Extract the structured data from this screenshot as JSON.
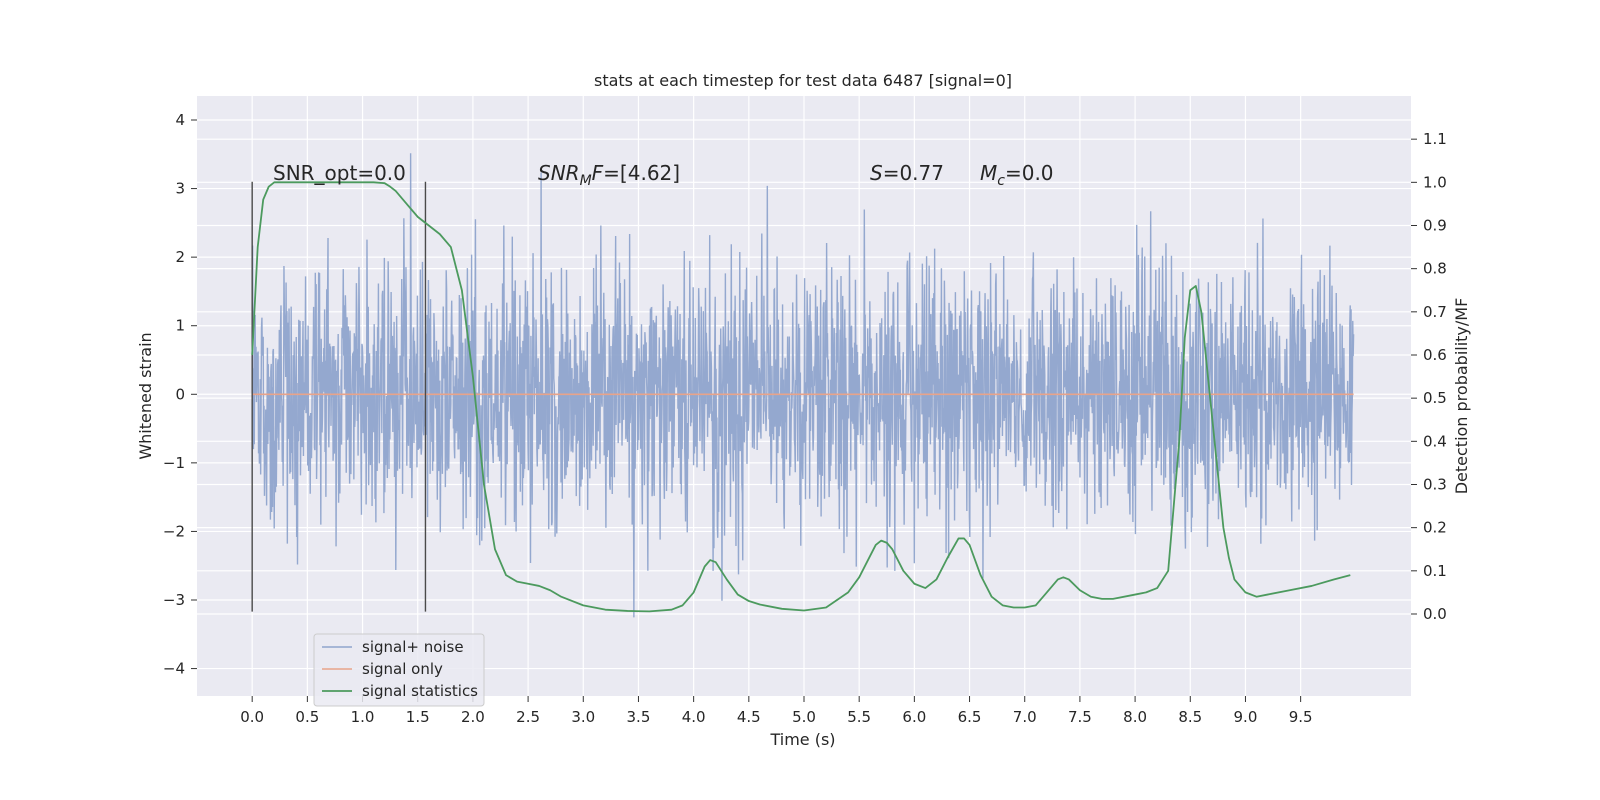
{
  "chart_data": {
    "type": "line",
    "title": "stats at each timestep for test data 6487 [signal=0]",
    "xlabel": "Time (s)",
    "ylabel_left": "Whitened strain",
    "ylabel_right": "Detection probability/MF",
    "xlim": [
      -0.5,
      10.5
    ],
    "ylim_left": [
      -4.4,
      4.35
    ],
    "ylim_right": [
      -0.19,
      1.2
    ],
    "x_ticks": [
      "0.0",
      "0.5",
      "1.0",
      "1.5",
      "2.0",
      "2.5",
      "3.0",
      "3.5",
      "4.0",
      "4.5",
      "5.0",
      "5.5",
      "6.0",
      "6.5",
      "7.0",
      "7.5",
      "8.0",
      "8.5",
      "9.0",
      "9.5"
    ],
    "y_left_ticks": [
      "4",
      "3",
      "2",
      "1",
      "0",
      "−1",
      "−2",
      "−3",
      "−4"
    ],
    "y_right_ticks": [
      "1.1",
      "1.0",
      "0.9",
      "0.8",
      "0.7",
      "0.6",
      "0.5",
      "0.4",
      "0.3",
      "0.2",
      "0.1",
      "0.0"
    ],
    "grid": true,
    "legend_position": "lower-left",
    "annotations": {
      "snr_opt": "SNR_opt=0.0",
      "snr_mf_main": "SNR",
      "snr_mf_sub": "M",
      "snr_mf_f": "F",
      "snr_mf_value": "=[4.62]",
      "s_label": "S",
      "s_value": "=0.77",
      "mc_label": "M",
      "mc_sub": "c",
      "mc_value": "=0.0"
    },
    "vertical_lines_x": [
      0.0,
      1.57
    ],
    "vertical_lines_range": [
      -3.17,
      3.1
    ],
    "series": [
      {
        "name": "signal+ noise",
        "color": "#8fa4cc",
        "axis": "left",
        "description_band": [
          -1.3,
          1.25
        ],
        "x_range": [
          0.0,
          9.98
        ]
      },
      {
        "name": "signal only",
        "color": "#e8a38a",
        "axis": "left",
        "x": [
          0.0,
          9.98
        ],
        "y": [
          0.0,
          0.0
        ]
      },
      {
        "name": "signal statistics",
        "color": "#4c9a5e",
        "axis": "right",
        "x": [
          0.0,
          0.05,
          0.1,
          0.15,
          0.2,
          0.4,
          0.6,
          0.8,
          1.0,
          1.1,
          1.2,
          1.25,
          1.3,
          1.4,
          1.5,
          1.6,
          1.7,
          1.8,
          1.9,
          2.0,
          2.1,
          2.2,
          2.3,
          2.4,
          2.5,
          2.6,
          2.7,
          2.8,
          3.0,
          3.2,
          3.4,
          3.6,
          3.8,
          3.9,
          4.0,
          4.1,
          4.15,
          4.2,
          4.3,
          4.4,
          4.5,
          4.6,
          4.8,
          5.0,
          5.2,
          5.4,
          5.5,
          5.6,
          5.65,
          5.7,
          5.75,
          5.8,
          5.9,
          6.0,
          6.1,
          6.2,
          6.3,
          6.4,
          6.45,
          6.5,
          6.6,
          6.7,
          6.8,
          6.9,
          7.0,
          7.1,
          7.2,
          7.3,
          7.35,
          7.4,
          7.5,
          7.6,
          7.7,
          7.8,
          8.0,
          8.1,
          8.2,
          8.3,
          8.4,
          8.45,
          8.5,
          8.55,
          8.6,
          8.7,
          8.8,
          8.85,
          8.9,
          9.0,
          9.1,
          9.2,
          9.4,
          9.6,
          9.8,
          9.95
        ],
        "y": [
          0.6,
          0.85,
          0.96,
          0.99,
          1.0,
          1.0,
          1.0,
          1.0,
          1.0,
          1.0,
          0.998,
          0.99,
          0.98,
          0.95,
          0.92,
          0.9,
          0.88,
          0.85,
          0.75,
          0.55,
          0.3,
          0.15,
          0.09,
          0.075,
          0.07,
          0.065,
          0.055,
          0.04,
          0.02,
          0.01,
          0.007,
          0.006,
          0.01,
          0.02,
          0.05,
          0.11,
          0.125,
          0.12,
          0.08,
          0.045,
          0.03,
          0.022,
          0.012,
          0.008,
          0.015,
          0.05,
          0.085,
          0.135,
          0.16,
          0.17,
          0.165,
          0.15,
          0.1,
          0.07,
          0.06,
          0.08,
          0.13,
          0.175,
          0.175,
          0.16,
          0.09,
          0.04,
          0.02,
          0.015,
          0.015,
          0.02,
          0.05,
          0.08,
          0.085,
          0.08,
          0.055,
          0.04,
          0.035,
          0.035,
          0.045,
          0.05,
          0.06,
          0.1,
          0.4,
          0.64,
          0.75,
          0.76,
          0.7,
          0.45,
          0.2,
          0.13,
          0.08,
          0.05,
          0.04,
          0.045,
          0.055,
          0.065,
          0.08,
          0.09
        ]
      }
    ]
  }
}
